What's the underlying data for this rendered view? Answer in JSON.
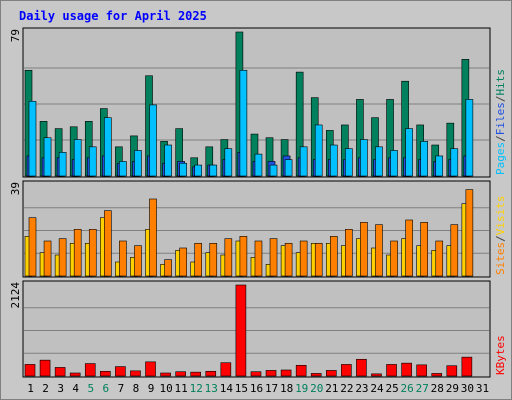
{
  "chart_data": {
    "type": "bar",
    "title": "Daily usage for April 2025",
    "x": [
      "1",
      "2",
      "3",
      "4",
      "5",
      "6",
      "7",
      "8",
      "9",
      "10",
      "11",
      "12",
      "13",
      "14",
      "15",
      "16",
      "17",
      "18",
      "19",
      "20",
      "21",
      "22",
      "23",
      "24",
      "25",
      "26",
      "27",
      "28",
      "29",
      "30",
      "31"
    ],
    "weekend_days": [
      "5",
      "6",
      "12",
      "13",
      "19",
      "20",
      "26",
      "27"
    ],
    "panels": [
      {
        "id": "hits",
        "max_label": "79",
        "ylim": [
          0,
          79
        ],
        "legend": [
          {
            "text": "Pages",
            "color": "#00c0ff"
          },
          {
            "text": "/",
            "color": "#404040"
          },
          {
            "text": "Files",
            "color": "#2050e0"
          },
          {
            "text": "/",
            "color": "#404040"
          },
          {
            "text": "Hits",
            "color": "#00805c"
          }
        ],
        "series": [
          {
            "name": "Hits",
            "color": "#00805c",
            "values": [
              58,
              30,
              26,
              27,
              30,
              37,
              16,
              22,
              55,
              19,
              26,
              10,
              16,
              20,
              79,
              23,
              21,
              20,
              57,
              43,
              25,
              28,
              42,
              32,
              42,
              52,
              28,
              17,
              29,
              64,
              0
            ]
          },
          {
            "name": "Files",
            "color": "#2050e0",
            "values": [
              11,
              10,
              10,
              9,
              10,
              11,
              7,
              8,
              11,
              7,
              8,
              5,
              6,
              9,
              13,
              8,
              8,
              11,
              10,
              9,
              9,
              9,
              10,
              9,
              10,
              10,
              9,
              8,
              9,
              11,
              0
            ]
          },
          {
            "name": "Pages",
            "color": "#00c0ff",
            "values": [
              41,
              21,
              13,
              20,
              16,
              32,
              8,
              14,
              39,
              17,
              7,
              6,
              6,
              15,
              58,
              12,
              6,
              9,
              16,
              28,
              17,
              15,
              20,
              16,
              14,
              26,
              19,
              11,
              15,
              42,
              0
            ]
          }
        ]
      },
      {
        "id": "visits",
        "max_label": "39",
        "ylim": [
          0,
          39
        ],
        "legend": [
          {
            "text": "Sites",
            "color": "#ff8000"
          },
          {
            "text": "/",
            "color": "#404040"
          },
          {
            "text": "Visits",
            "color": "#ffd000"
          }
        ],
        "series": [
          {
            "name": "Visits",
            "color": "#ffd000",
            "values": [
              17,
              10,
              9,
              14,
              14,
              25,
              6,
              8,
              20,
              5,
              11,
              6,
              10,
              9,
              15,
              8,
              5,
              13,
              10,
              14,
              14,
              13,
              16,
              12,
              9,
              16,
              13,
              11,
              13,
              31,
              0
            ]
          },
          {
            "name": "Sites",
            "color": "#ff8000",
            "values": [
              25,
              15,
              16,
              20,
              20,
              28,
              15,
              13,
              33,
              7,
              12,
              14,
              14,
              16,
              17,
              15,
              16,
              14,
              15,
              14,
              17,
              20,
              23,
              22,
              15,
              24,
              23,
              15,
              22,
              37,
              0
            ]
          }
        ]
      },
      {
        "id": "kbytes",
        "max_label": "2124",
        "ylim": [
          0,
          2124
        ],
        "legend": [
          {
            "text": "KBytes",
            "color": "#ff0000"
          }
        ],
        "series": [
          {
            "name": "KBytes",
            "color": "#ff0000",
            "values": [
              270,
              370,
              200,
              70,
              290,
              110,
              220,
              120,
              330,
              70,
              100,
              90,
              110,
              310,
              2124,
              100,
              130,
              140,
              250,
              60,
              130,
              270,
              390,
              50,
              270,
              300,
              260,
              60,
              240,
              440,
              0
            ]
          }
        ]
      }
    ]
  }
}
